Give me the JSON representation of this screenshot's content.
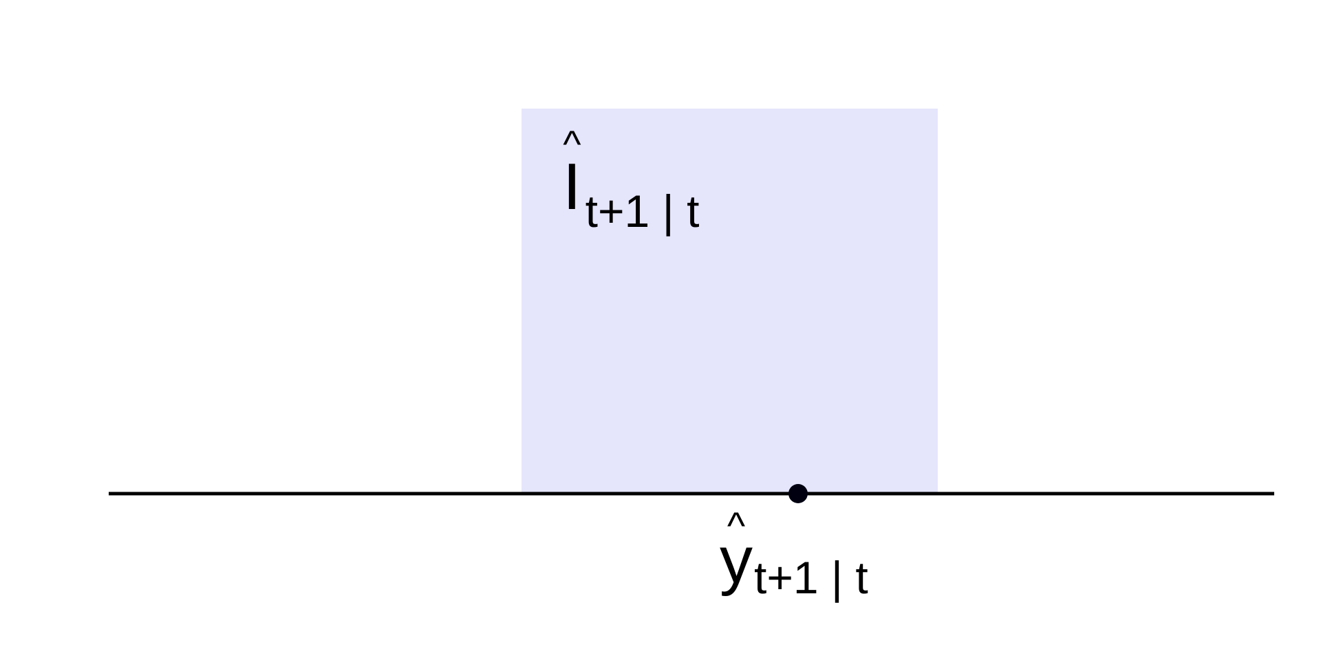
{
  "colors": {
    "interval_fill": "#e5e5fc",
    "axis": "#000000",
    "point": "#000011",
    "text": "#000000"
  },
  "interval_label": {
    "hat": "^",
    "symbol": "I",
    "subscript": "t+1 | t"
  },
  "point_label": {
    "hat": "^",
    "symbol": "y",
    "subscript": "t+1 | t"
  }
}
